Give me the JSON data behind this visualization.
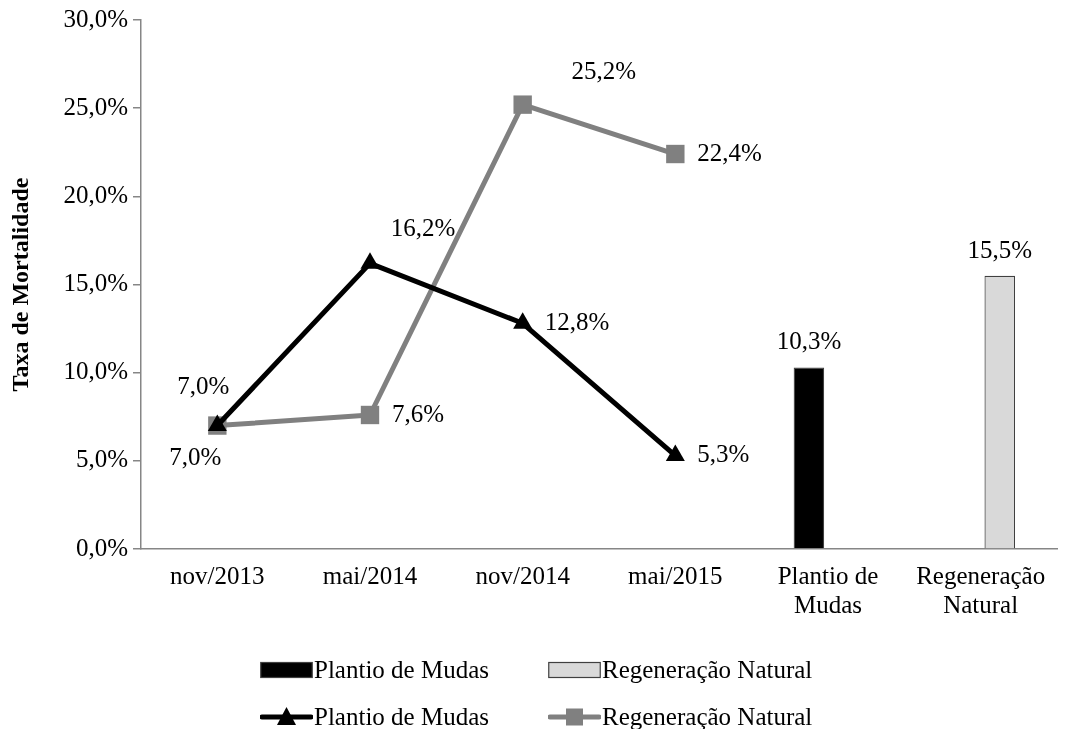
{
  "chart_data": {
    "type": "bar",
    "ylabel": "Taxa de Mortalidade",
    "categories": [
      "nov/2013",
      "mai/2014",
      "nov/2014",
      "mai/2015",
      "Plantio de Mudas",
      "Regeneração Natural"
    ],
    "series": [
      {
        "name": "Plantio de Mudas",
        "type": "bar",
        "color": "#000000",
        "values": [
          null,
          null,
          null,
          null,
          10.3,
          null
        ],
        "value_labels": [
          null,
          null,
          null,
          null,
          "10,3%",
          null
        ]
      },
      {
        "name": "Regeneração Natural",
        "type": "bar",
        "color": "#d9d9d9",
        "values": [
          null,
          null,
          null,
          null,
          null,
          15.5
        ],
        "value_labels": [
          null,
          null,
          null,
          null,
          null,
          "15,5%"
        ]
      },
      {
        "name": "Plantio de Mudas",
        "type": "line",
        "color": "#000000",
        "marker": "triangle",
        "values": [
          7.0,
          16.2,
          12.8,
          5.3,
          null,
          null
        ],
        "value_labels": [
          "7,0%",
          "16,2%",
          "12,8%",
          "5,3%",
          null,
          null
        ]
      },
      {
        "name": "Regeneração Natural",
        "type": "line",
        "color": "#808080",
        "marker": "square",
        "values": [
          7.0,
          7.6,
          25.2,
          22.4,
          null,
          null
        ],
        "value_labels": [
          "7,0%",
          "7,6%",
          "25,2%",
          "22,4%",
          null,
          null
        ]
      }
    ],
    "ylim": [
      0,
      30
    ],
    "yticks": [
      {
        "value": 0,
        "label": "0,0%"
      },
      {
        "value": 5,
        "label": "5,0%"
      },
      {
        "value": 10,
        "label": "10,0%"
      },
      {
        "value": 15,
        "label": "15,0%"
      },
      {
        "value": 20,
        "label": "20,0%"
      },
      {
        "value": 25,
        "label": "25,0%"
      },
      {
        "value": 30,
        "label": "30,0%"
      }
    ],
    "grid": false,
    "legend": "bottom"
  }
}
